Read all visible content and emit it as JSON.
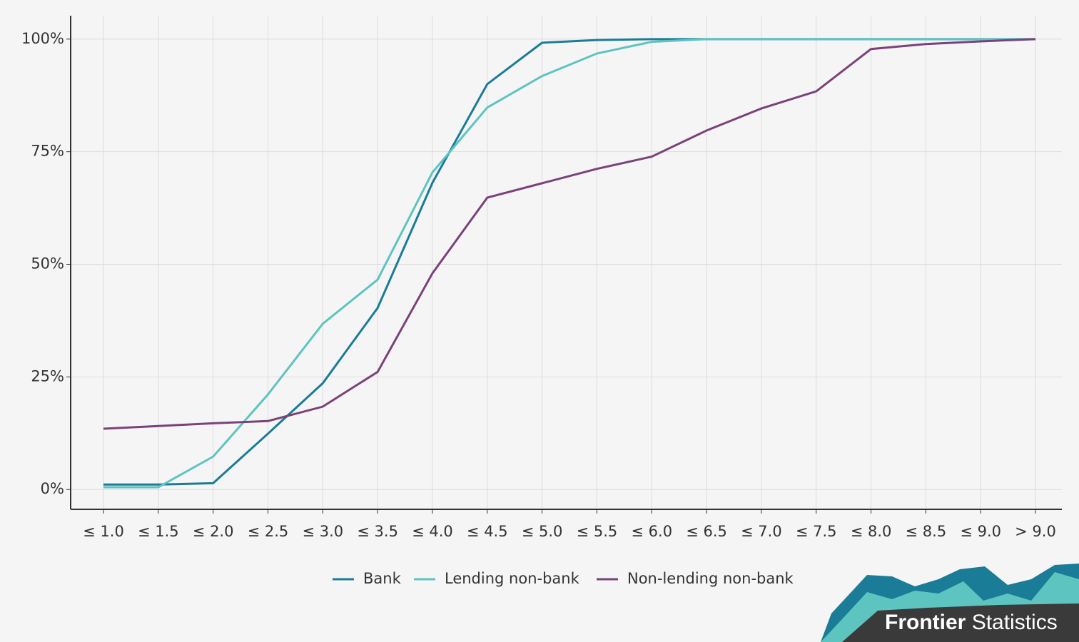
{
  "chart_data": {
    "type": "line",
    "categories": [
      "≤ 1.0",
      "≤ 1.5",
      "≤ 2.0",
      "≤ 2.5",
      "≤ 3.0",
      "≤ 3.5",
      "≤ 4.0",
      "≤ 4.5",
      "≤ 5.0",
      "≤ 5.5",
      "≤ 6.0",
      "≤ 6.5",
      "≤ 7.0",
      "≤ 7.5",
      "≤ 8.0",
      "≤ 8.5",
      "≤ 9.0",
      "> 9.0"
    ],
    "series": [
      {
        "name": "Bank",
        "color": "#1a7c96",
        "values": [
          1.1,
          1.1,
          1.4,
          12.4,
          23.6,
          40.3,
          68.1,
          90,
          99.2,
          99.8,
          100,
          100,
          100,
          100,
          100,
          100,
          100,
          100
        ]
      },
      {
        "name": "Lending non-bank",
        "color": "#5ec4c0",
        "values": [
          0.5,
          0.5,
          7.3,
          21.1,
          36.8,
          46.6,
          70.4,
          84.8,
          91.8,
          96.8,
          99.4,
          100,
          100,
          100,
          100,
          100,
          100,
          100
        ]
      },
      {
        "name": "Non-lending non-bank",
        "color": "#7b4279",
        "values": [
          13.5,
          14.1,
          14.7,
          15.2,
          18.4,
          26.1,
          48,
          64.8,
          68,
          71.2,
          73.9,
          79.7,
          84.6,
          88.4,
          97.8,
          98.9,
          99.5,
          100
        ]
      }
    ],
    "ylim": [
      -4.4,
      105.2
    ],
    "yticks": [
      {
        "value": 0,
        "label": "0%"
      },
      {
        "value": 25,
        "label": "25%"
      },
      {
        "value": 50,
        "label": "50%"
      },
      {
        "value": 75,
        "label": "75%"
      },
      {
        "value": 100,
        "label": "100%"
      }
    ],
    "grid": true,
    "legend": "bottom"
  },
  "logo": {
    "brand": "Frontier",
    "product": "Statistics"
  }
}
